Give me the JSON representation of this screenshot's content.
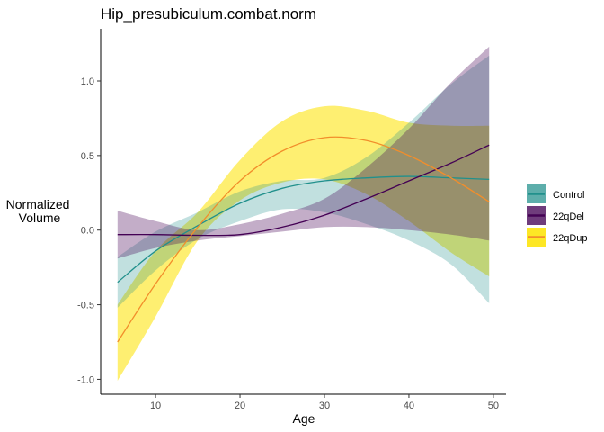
{
  "chart_data": {
    "type": "line",
    "title": "Hip_presubiculum.combat.norm",
    "xlabel": "Age",
    "ylabel": [
      "Normalized",
      "Volume"
    ],
    "xlim": [
      3.5,
      51.5
    ],
    "ylim": [
      -1.1,
      1.35
    ],
    "xticks": [
      10,
      20,
      30,
      40,
      50
    ],
    "yticks": [
      -1.0,
      -0.5,
      0.0,
      0.5,
      1.0
    ],
    "ytick_labels": [
      "-1.0",
      "-0.5",
      "0.0",
      "0.5",
      "1.0"
    ],
    "grid": false,
    "legend_position": "right",
    "x": [
      5.5,
      10,
      15,
      20,
      25,
      30,
      35,
      40,
      45,
      49.5
    ],
    "series": [
      {
        "name": "Control",
        "color": "#21908C",
        "fill_opacity": 0.28,
        "values": [
          -0.35,
          -0.14,
          0.03,
          0.18,
          0.28,
          0.33,
          0.35,
          0.36,
          0.35,
          0.34
        ],
        "lower": [
          -0.52,
          -0.27,
          -0.06,
          0.06,
          0.14,
          0.12,
          0.04,
          -0.07,
          -0.23,
          -0.49
        ],
        "upper": [
          -0.18,
          -0.01,
          0.12,
          0.26,
          0.33,
          0.35,
          0.49,
          0.72,
          0.98,
          1.17
        ]
      },
      {
        "name": "22qDel",
        "color": "#440154",
        "fill_opacity": 0.32,
        "values": [
          -0.03,
          -0.03,
          -0.035,
          -0.03,
          0.02,
          0.1,
          0.21,
          0.33,
          0.45,
          0.57
        ],
        "lower": [
          -0.19,
          -0.12,
          -0.07,
          -0.04,
          -0.01,
          0.02,
          0.02,
          0.0,
          -0.03,
          -0.07
        ],
        "upper": [
          0.13,
          0.06,
          0.0,
          0.04,
          0.11,
          0.21,
          0.42,
          0.68,
          0.99,
          1.23
        ]
      },
      {
        "name": "22qDup",
        "color": "#FDE725",
        "line_color": "#F28E2B",
        "fill_opacity": 0.65,
        "values": [
          -0.75,
          -0.36,
          0.02,
          0.33,
          0.53,
          0.62,
          0.6,
          0.5,
          0.35,
          0.19
        ],
        "lower": [
          -1.01,
          -0.58,
          -0.07,
          0.2,
          0.32,
          0.34,
          0.24,
          0.06,
          -0.15,
          -0.31
        ],
        "upper": [
          -0.5,
          -0.14,
          0.12,
          0.47,
          0.73,
          0.83,
          0.8,
          0.72,
          0.7,
          0.7
        ]
      }
    ]
  }
}
